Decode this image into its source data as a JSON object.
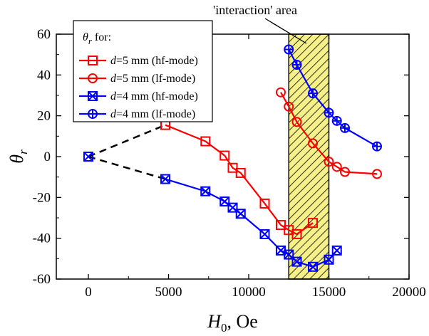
{
  "chart_data": {
    "type": "line",
    "xlabel": {
      "main": "H",
      "sub": "0",
      "rest": ", Oe"
    },
    "ylabel": {
      "main": "θ",
      "sub": "r"
    },
    "xlim": [
      -2000,
      20000
    ],
    "ylim": [
      -60,
      60
    ],
    "xticks": [
      0,
      5000,
      10000,
      15000,
      20000
    ],
    "yticks": [
      -60,
      -40,
      -20,
      0,
      20,
      40,
      60
    ],
    "grid": false,
    "legend": {
      "title": {
        "main": "θ",
        "sub": "r",
        "rest": " for:"
      },
      "position": "top-left",
      "entries": [
        {
          "series": 0,
          "italic": "d",
          "text": "=5 mm (hf-mode)"
        },
        {
          "series": 1,
          "italic": "d",
          "text": "=5 mm (lf-mode)"
        },
        {
          "series": 2,
          "italic": "d",
          "text": "=4 mm (hf-mode)"
        },
        {
          "series": 3,
          "italic": "d",
          "text": "=4 mm (lf-mode)"
        }
      ]
    },
    "shaded_region": {
      "x": [
        12500,
        15000
      ],
      "fill": "#f5f08a",
      "hatch": "#000000",
      "label": "'interaction' area"
    },
    "series": [
      {
        "color": "#ff0000",
        "marker": "square",
        "x": [
          4800,
          7300,
          8500,
          9000,
          9500,
          11000,
          12000,
          12500,
          13000,
          14000
        ],
        "y": [
          15.5,
          7.5,
          0.5,
          -5.5,
          -8,
          -23,
          -33.5,
          -36,
          -38,
          -32.5
        ]
      },
      {
        "color": "#ff0000",
        "marker": "circle",
        "x": [
          12000,
          12500,
          13000,
          14000,
          15000,
          15500,
          16000,
          18000
        ],
        "y": [
          31.5,
          24.5,
          17,
          6.5,
          -2.5,
          -5,
          -7.5,
          -8.5
        ]
      },
      {
        "color": "#0000ff",
        "marker": "square-x",
        "x": [
          4800,
          7300,
          8500,
          9000,
          9500,
          11000,
          12000,
          12500,
          13000,
          14000,
          15000,
          15500
        ],
        "y": [
          -11,
          -17,
          -22,
          -25,
          -28,
          -38,
          -46,
          -48,
          -51.5,
          -54,
          -50.5,
          -46
        ]
      },
      {
        "color": "#0000ff",
        "marker": "circle-plus",
        "x": [
          12500,
          13000,
          14000,
          15000,
          15500,
          16000,
          18000
        ],
        "y": [
          52.5,
          45,
          31,
          21.5,
          17.5,
          14,
          5
        ]
      }
    ],
    "dashed_lines": [
      {
        "x": [
          0,
          4800
        ],
        "y": [
          0,
          15.5
        ]
      },
      {
        "x": [
          0,
          4800
        ],
        "y": [
          0,
          -11
        ]
      }
    ],
    "origin_marker": {
      "x": 0,
      "y": 0,
      "color": "#0000ff"
    }
  }
}
